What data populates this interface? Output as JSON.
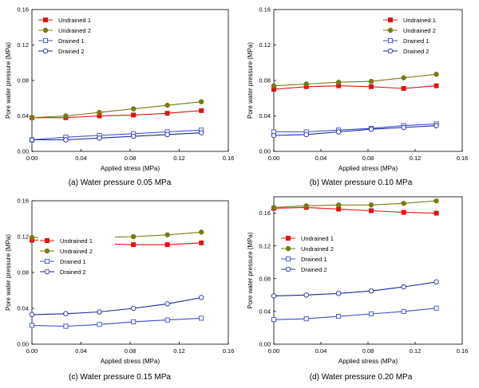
{
  "colors": {
    "undrained_1": "#e01414",
    "undrained_2": "#7a7a10",
    "drained_1": "#3a4fd0",
    "drained_2": "#1a2a9a",
    "axis": "#000000"
  },
  "chart_data": [
    {
      "type": "line",
      "caption": "(a) Water pressure 0.05 MPa",
      "xlabel": "Applied stress (MPa)",
      "ylabel": "Pore water pressure (MPa)",
      "xlim": [
        0,
        0.16
      ],
      "ylim": [
        0,
        0.16
      ],
      "xticks": [
        "0.00",
        "0.04",
        "0.08",
        "0.12",
        "0.16"
      ],
      "yticks": [
        "0.00",
        "0.04",
        "0.08",
        "0.12",
        "0.16"
      ],
      "legend_position": "top-left",
      "x": [
        0,
        0.0276,
        0.055,
        0.0827,
        0.1103,
        0.138
      ],
      "series": [
        {
          "name": "Undrained 1",
          "marker": "square-filled",
          "color_key": "undrained_1",
          "values": [
            0.038,
            0.038,
            0.04,
            0.041,
            0.043,
            0.046
          ]
        },
        {
          "name": "Undrained 2",
          "marker": "circle-filled",
          "color_key": "undrained_2",
          "values": [
            0.038,
            0.04,
            0.044,
            0.048,
            0.052,
            0.056
          ]
        },
        {
          "name": "Drained 1",
          "marker": "square-open",
          "color_key": "drained_1",
          "values": [
            0.013,
            0.016,
            0.018,
            0.02,
            0.022,
            0.024
          ]
        },
        {
          "name": "Drained 2",
          "marker": "circle-open",
          "color_key": "drained_2",
          "values": [
            0.013,
            0.013,
            0.015,
            0.017,
            0.019,
            0.021
          ]
        }
      ]
    },
    {
      "type": "line",
      "caption": "(b) Water pressure 0.10 MPa",
      "xlabel": "Applied stress (MPa)",
      "ylabel": "Pore water pressure (MPa)",
      "xlim": [
        0,
        0.16
      ],
      "ylim": [
        0,
        0.16
      ],
      "xticks": [
        "0.00",
        "0.04",
        "0.08",
        "0.12",
        "0.16"
      ],
      "yticks": [
        "0.00",
        "0.04",
        "0.08",
        "0.12",
        "0.16"
      ],
      "legend_position": "top-right",
      "x": [
        0,
        0.0276,
        0.055,
        0.0827,
        0.1103,
        0.138
      ],
      "series": [
        {
          "name": "Undrained 1",
          "marker": "square-filled",
          "color_key": "undrained_1",
          "values": [
            0.07,
            0.073,
            0.074,
            0.073,
            0.071,
            0.074
          ]
        },
        {
          "name": "Undrained 2",
          "marker": "circle-filled",
          "color_key": "undrained_2",
          "values": [
            0.074,
            0.076,
            0.078,
            0.079,
            0.083,
            0.087
          ]
        },
        {
          "name": "Drained 1",
          "marker": "square-open",
          "color_key": "drained_1",
          "values": [
            0.022,
            0.022,
            0.024,
            0.026,
            0.029,
            0.031
          ]
        },
        {
          "name": "Drained 2",
          "marker": "circle-open",
          "color_key": "drained_2",
          "values": [
            0.018,
            0.019,
            0.022,
            0.025,
            0.027,
            0.029
          ]
        }
      ]
    },
    {
      "type": "line",
      "caption": "(c) Water pressure 0.15 MPa",
      "xlabel": "Applied stress (MPa)",
      "ylabel": "Pore water pressure (MPa)",
      "xlim": [
        0,
        0.16
      ],
      "ylim": [
        0,
        0.16
      ],
      "xticks": [
        "0.00",
        "0.04",
        "0.08",
        "0.12",
        "0.16"
      ],
      "yticks": [
        "0.00",
        "0.04",
        "0.08",
        "0.12",
        "0.16"
      ],
      "legend_position": "center-left",
      "x": [
        0,
        0.0276,
        0.055,
        0.0827,
        0.1103,
        0.138
      ],
      "series": [
        {
          "name": "Undrained 1",
          "marker": "square-filled",
          "color_key": "undrained_1",
          "values": [
            0.116,
            0.117,
            0.112,
            0.111,
            0.111,
            0.113
          ]
        },
        {
          "name": "Undrained 2",
          "marker": "circle-filled",
          "color_key": "undrained_2",
          "values": [
            0.119,
            0.119,
            0.119,
            0.12,
            0.122,
            0.125
          ]
        },
        {
          "name": "Drained 1",
          "marker": "square-open",
          "color_key": "drained_1",
          "values": [
            0.021,
            0.02,
            0.022,
            0.025,
            0.027,
            0.029
          ]
        },
        {
          "name": "Drained 2",
          "marker": "circle-open",
          "color_key": "drained_2",
          "values": [
            0.033,
            0.034,
            0.036,
            0.04,
            0.045,
            0.052
          ]
        }
      ]
    },
    {
      "type": "line",
      "caption": "(d) Water pressure 0.20 MPa",
      "xlabel": "Applied stress (MPa)",
      "ylabel": "Pore water pressure (MPa)",
      "xlim": [
        0,
        0.16
      ],
      "ylim": [
        0,
        0.18
      ],
      "xticks": [
        "0.00",
        "0.04",
        "0.08",
        "0.12",
        "0.16"
      ],
      "yticks": [
        "0.00",
        "0.04",
        "0.08",
        "0.12",
        "0.16"
      ],
      "legend_position": "center-left",
      "x": [
        0,
        0.0276,
        0.055,
        0.0827,
        0.1103,
        0.138
      ],
      "series": [
        {
          "name": "Undrained 1",
          "marker": "square-filled",
          "color_key": "undrained_1",
          "values": [
            0.166,
            0.167,
            0.165,
            0.163,
            0.161,
            0.16
          ]
        },
        {
          "name": "Undrained 2",
          "marker": "circle-filled",
          "color_key": "undrained_2",
          "values": [
            0.167,
            0.169,
            0.17,
            0.17,
            0.172,
            0.175
          ]
        },
        {
          "name": "Drained 1",
          "marker": "square-open",
          "color_key": "drained_1",
          "values": [
            0.03,
            0.031,
            0.034,
            0.037,
            0.04,
            0.044
          ]
        },
        {
          "name": "Drained 2",
          "marker": "circle-open",
          "color_key": "drained_2",
          "values": [
            0.059,
            0.06,
            0.062,
            0.065,
            0.07,
            0.076
          ]
        }
      ]
    }
  ]
}
